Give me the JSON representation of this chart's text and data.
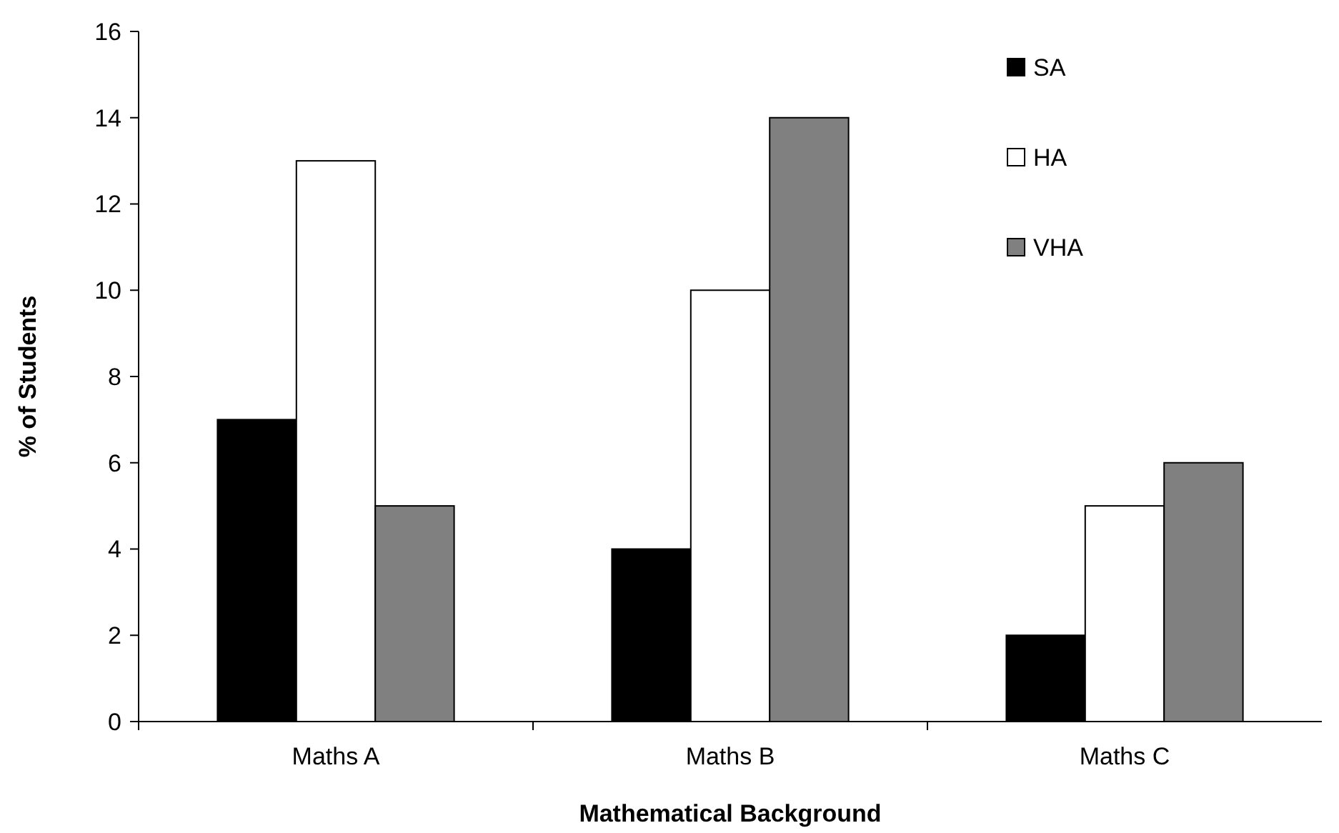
{
  "chart_data": {
    "type": "bar",
    "xlabel": "Mathematical Background",
    "ylabel": "% of Students",
    "categories": [
      "Maths A",
      "Maths B",
      "Maths C"
    ],
    "series": [
      {
        "name": "SA",
        "color": "#000000",
        "values": [
          7,
          4,
          2
        ]
      },
      {
        "name": "HA",
        "color": "#ffffff",
        "values": [
          13,
          10,
          5
        ]
      },
      {
        "name": "VHA",
        "color": "#808080",
        "values": [
          5,
          14,
          6
        ]
      }
    ],
    "ylim": [
      0,
      16
    ],
    "yticks": [
      0,
      2,
      4,
      6,
      8,
      10,
      12,
      14,
      16
    ],
    "grid": false,
    "legend": "top right"
  }
}
